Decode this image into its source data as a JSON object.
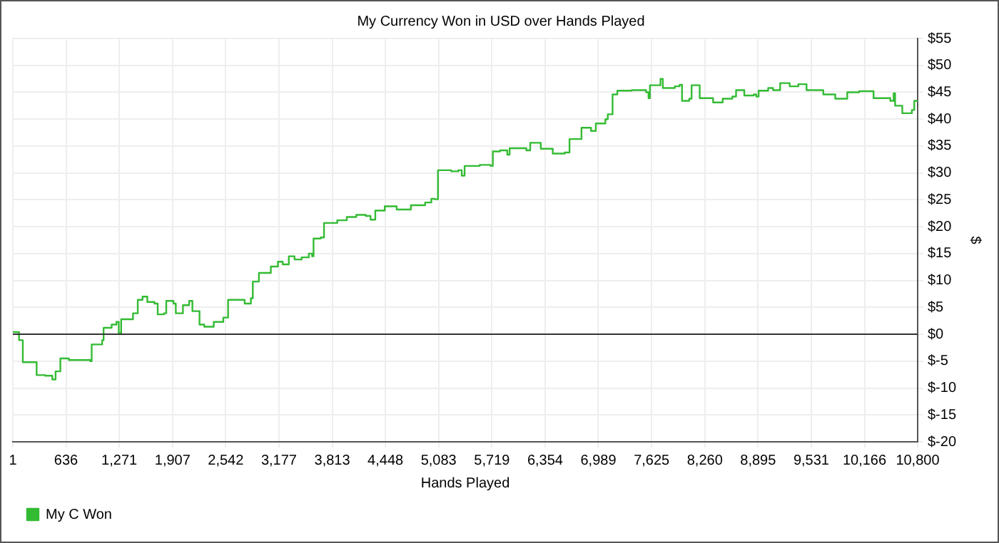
{
  "chart_data": {
    "type": "step",
    "title": "My Currency Won in USD over Hands Played",
    "xlabel": "Hands Played",
    "ylabel": "$",
    "x": [
      1,
      46,
      75,
      120,
      245,
      285,
      387,
      472,
      511,
      568,
      670,
      783,
      925,
      942,
      1067,
      1084,
      1180,
      1237,
      1265,
      1294,
      1435,
      1492,
      1549,
      1606,
      1691,
      1730,
      1804,
      1832,
      1918,
      1946,
      2031,
      2105,
      2144,
      2212,
      2229,
      2286,
      2399,
      2513,
      2570,
      2683,
      2768,
      2842,
      2865,
      2938,
      3023,
      3080,
      3165,
      3222,
      3295,
      3363,
      3448,
      3533,
      3573,
      3590,
      3675,
      3715,
      3873,
      3987,
      4100,
      4213,
      4270,
      4327,
      4440,
      4582,
      4752,
      4922,
      4996,
      5035,
      5075,
      5234,
      5319,
      5359,
      5393,
      5574,
      5616,
      5702,
      5730,
      5816,
      5902,
      5930,
      6130,
      6176,
      6302,
      6445,
      6588,
      6645,
      6731,
      6788,
      6902,
      6959,
      7073,
      7102,
      7159,
      7216,
      7388,
      7559,
      7588,
      7605,
      7702,
      7731,
      7759,
      7902,
      7959,
      7988,
      8074,
      8102,
      8176,
      8199,
      8359,
      8473,
      8588,
      8633,
      8731,
      8845,
      8874,
      8902,
      9016,
      9074,
      9159,
      9273,
      9376,
      9474,
      9674,
      9817,
      9960,
      10102,
      10274,
      10474,
      10514,
      10531,
      10617,
      10731,
      10760,
      10800
    ],
    "series": [
      {
        "name": "My C Won",
        "color": "#33bb33",
        "values": [
          0.4,
          0.4,
          -1.1,
          -5.2,
          -5.2,
          -7.6,
          -7.7,
          -8.4,
          -6.9,
          -4.5,
          -4.8,
          -4.8,
          -5.0,
          -1.9,
          -1.1,
          1.2,
          1.8,
          2.3,
          0.2,
          2.8,
          3.9,
          6.4,
          7.0,
          6.0,
          5.7,
          3.7,
          3.9,
          6.2,
          5.7,
          3.9,
          5.4,
          6.2,
          4.3,
          4.3,
          1.8,
          1.4,
          2.3,
          3.1,
          6.4,
          6.4,
          5.7,
          6.7,
          9.8,
          11.4,
          11.4,
          12.6,
          13.5,
          13.0,
          14.5,
          13.9,
          14.3,
          15.0,
          14.5,
          17.8,
          18.0,
          20.7,
          21.2,
          21.8,
          22.2,
          22.0,
          21.3,
          23.0,
          23.8,
          23.2,
          24.0,
          24.5,
          25.2,
          25.1,
          30.5,
          30.3,
          30.5,
          29.5,
          31.3,
          31.5,
          31.5,
          31.3,
          34.0,
          34.2,
          33.4,
          34.6,
          34.2,
          35.6,
          34.5,
          33.6,
          33.8,
          36.3,
          36.3,
          38.4,
          37.8,
          39.2,
          40.0,
          40.9,
          44.6,
          45.3,
          45.4,
          45.0,
          43.9,
          46.3,
          46.3,
          47.5,
          45.8,
          46.1,
          46.4,
          43.4,
          43.8,
          46.3,
          46.3,
          43.9,
          43.1,
          43.8,
          44.2,
          45.4,
          44.4,
          44.6,
          44.2,
          45.3,
          45.8,
          45.4,
          46.7,
          46.1,
          46.5,
          45.4,
          44.6,
          43.8,
          45.0,
          45.2,
          43.9,
          43.4,
          44.8,
          42.5,
          41.1,
          41.7,
          43.4,
          43.6
        ]
      }
    ],
    "xlim": [
      1,
      10800
    ],
    "xticks": [
      1,
      {
        "value": 636,
        "label": "636"
      },
      {
        "value": 1271,
        "label": "1,271"
      },
      {
        "value": 1907,
        "label": "1,907"
      },
      {
        "value": 2542,
        "label": "2,542"
      },
      {
        "value": 3177,
        "label": "3,177"
      },
      {
        "value": 3813,
        "label": "3,813"
      },
      {
        "value": 4448,
        "label": "4,448"
      },
      {
        "value": 5083,
        "label": "5,083"
      },
      {
        "value": 5719,
        "label": "5,719"
      },
      {
        "value": 6354,
        "label": "6,354"
      },
      {
        "value": 6989,
        "label": "6,989"
      },
      {
        "value": 7625,
        "label": "7,625"
      },
      {
        "value": 8260,
        "label": "8,260"
      },
      {
        "value": 8895,
        "label": "8,895"
      },
      {
        "value": 9531,
        "label": "9,531"
      },
      {
        "value": 10166,
        "label": "10,166"
      },
      {
        "value": 10800,
        "label": "10,800"
      }
    ],
    "ylim": [
      -20,
      55
    ],
    "yticks": [
      {
        "value": -20,
        "label": "$-20"
      },
      {
        "value": -15,
        "label": "$-15"
      },
      {
        "value": -10,
        "label": "$-10"
      },
      {
        "value": -5,
        "label": "$-5"
      },
      {
        "value": 0,
        "label": "$0"
      },
      {
        "value": 5,
        "label": "$5"
      },
      {
        "value": 10,
        "label": "$10"
      },
      {
        "value": 15,
        "label": "$15"
      },
      {
        "value": 20,
        "label": "$20"
      },
      {
        "value": 25,
        "label": "$25"
      },
      {
        "value": 30,
        "label": "$30"
      },
      {
        "value": 35,
        "label": "$35"
      },
      {
        "value": 40,
        "label": "$40"
      },
      {
        "value": 45,
        "label": "$45"
      },
      {
        "value": 50,
        "label": "$50"
      },
      {
        "value": 55,
        "label": "$55"
      }
    ],
    "ref_lines": [
      {
        "axis": "y",
        "value": 0,
        "color": "#333333"
      }
    ],
    "grid": true,
    "legend": "bottom left",
    "marker": "none",
    "line_style": "solid"
  }
}
